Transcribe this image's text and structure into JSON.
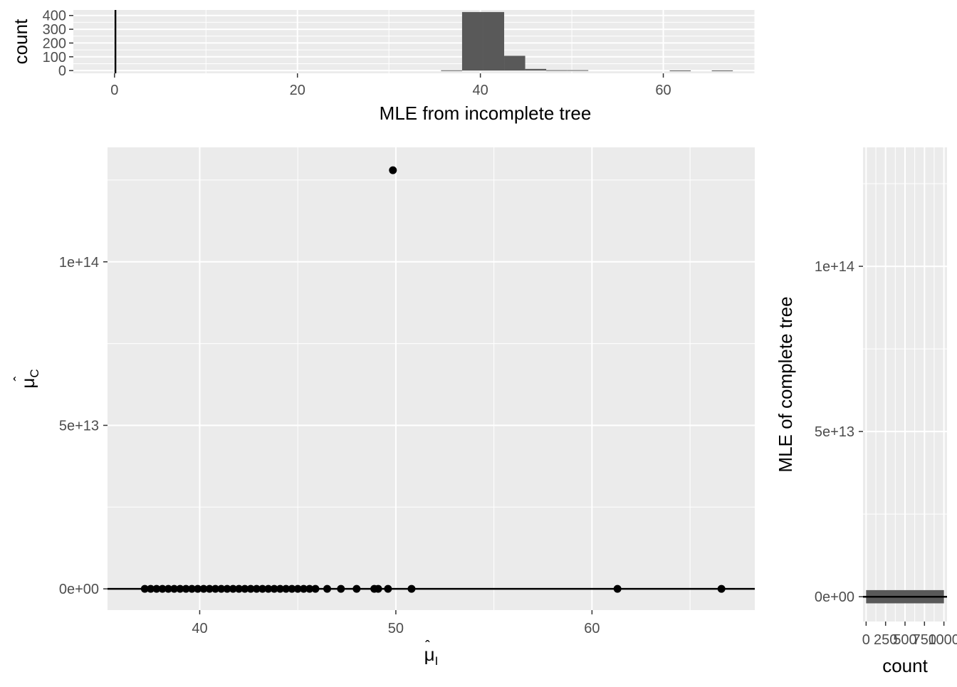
{
  "chart_data": [
    {
      "id": "top-histogram",
      "type": "bar",
      "xlabel": "MLE from incomplete tree",
      "ylabel": "count",
      "xlim": [
        -4.5,
        70
      ],
      "ylim": [
        -20,
        440
      ],
      "x_ticks": [
        0,
        20,
        40,
        60
      ],
      "y_ticks": [
        0,
        100,
        200,
        300,
        400
      ],
      "x_tick_labels": [
        "0",
        "20",
        "40",
        "60"
      ],
      "y_tick_labels": [
        "0",
        "100",
        "200",
        "300",
        "400"
      ],
      "bin_width": 2.3,
      "bins": [
        {
          "x0": 35.7,
          "x1": 38.0,
          "count": 2
        },
        {
          "x0": 38.0,
          "x1": 40.3,
          "count": 425
        },
        {
          "x0": 40.3,
          "x1": 42.6,
          "count": 425
        },
        {
          "x0": 42.6,
          "x1": 44.9,
          "count": 107
        },
        {
          "x0": 44.9,
          "x1": 47.2,
          "count": 12
        },
        {
          "x0": 47.2,
          "x1": 49.5,
          "count": 3
        },
        {
          "x0": 49.5,
          "x1": 51.8,
          "count": 3
        },
        {
          "x0": 60.7,
          "x1": 63.0,
          "count": 1
        },
        {
          "x0": 65.3,
          "x1": 67.6,
          "count": 1
        }
      ],
      "vline_x": 0.1,
      "grid": true,
      "bar_color": "#595959",
      "panel_color": "#ebebeb"
    },
    {
      "id": "main-scatter",
      "type": "scatter",
      "xlabel_main": "μ",
      "xlabel_sub": "I",
      "ylabel_main": "μ",
      "ylabel_sub": "C",
      "xlim": [
        35.3,
        68.3
      ],
      "ylim": [
        -6500000000000.0,
        135000000000000.0
      ],
      "x_ticks": [
        40,
        50,
        60
      ],
      "y_ticks": [
        0,
        50000000000000.0,
        100000000000000.0
      ],
      "x_tick_labels": [
        "40",
        "50",
        "60"
      ],
      "y_tick_labels": [
        "0e+00",
        "5e+13",
        "1e+14"
      ],
      "hline_y": 0,
      "points": [
        {
          "x": 49.85,
          "y": 128000000000000.0
        },
        {
          "x": 37.2,
          "y": 0
        },
        {
          "x": 37.5,
          "y": 0
        },
        {
          "x": 37.8,
          "y": 0
        },
        {
          "x": 38.1,
          "y": 0
        },
        {
          "x": 38.4,
          "y": 0
        },
        {
          "x": 38.7,
          "y": 0
        },
        {
          "x": 39.0,
          "y": 0
        },
        {
          "x": 39.3,
          "y": 0
        },
        {
          "x": 39.6,
          "y": 0
        },
        {
          "x": 39.9,
          "y": 0
        },
        {
          "x": 40.2,
          "y": 0
        },
        {
          "x": 40.5,
          "y": 0
        },
        {
          "x": 40.8,
          "y": 0
        },
        {
          "x": 41.1,
          "y": 0
        },
        {
          "x": 41.4,
          "y": 0
        },
        {
          "x": 41.7,
          "y": 0
        },
        {
          "x": 42.0,
          "y": 0
        },
        {
          "x": 42.3,
          "y": 0
        },
        {
          "x": 42.6,
          "y": 0
        },
        {
          "x": 42.9,
          "y": 0
        },
        {
          "x": 43.2,
          "y": 0
        },
        {
          "x": 43.5,
          "y": 0
        },
        {
          "x": 43.8,
          "y": 0
        },
        {
          "x": 44.1,
          "y": 0
        },
        {
          "x": 44.4,
          "y": 0
        },
        {
          "x": 44.7,
          "y": 0
        },
        {
          "x": 45.0,
          "y": 0
        },
        {
          "x": 45.3,
          "y": 0
        },
        {
          "x": 45.6,
          "y": 0
        },
        {
          "x": 45.9,
          "y": 0
        },
        {
          "x": 46.5,
          "y": 0
        },
        {
          "x": 47.2,
          "y": 0
        },
        {
          "x": 48.0,
          "y": 0
        },
        {
          "x": 48.9,
          "y": 0
        },
        {
          "x": 49.1,
          "y": 0
        },
        {
          "x": 49.6,
          "y": 0
        },
        {
          "x": 50.8,
          "y": 0
        },
        {
          "x": 61.3,
          "y": 0
        },
        {
          "x": 66.6,
          "y": 0
        }
      ],
      "grid": true,
      "point_color": "#000000",
      "panel_color": "#ebebeb"
    },
    {
      "id": "right-histogram",
      "type": "bar",
      "orientation": "horizontal",
      "xlabel": "count",
      "ylabel": "MLE of complete tree",
      "xlim": [
        -40,
        1040
      ],
      "ylim": [
        -7500000000000.0,
        136000000000000.0
      ],
      "x_ticks": [
        0,
        250,
        500,
        750,
        1000
      ],
      "x_tick_labels": [
        "0",
        "250",
        "500",
        "750",
        "1000"
      ],
      "y_ticks": [
        0,
        50000000000000.0,
        100000000000000.0
      ],
      "y_tick_labels": [
        "0e+00",
        "5e+13",
        "1e+14"
      ],
      "bars": [
        {
          "y0": -2000000000000.0,
          "y1": 2000000000000.0,
          "count": 1000
        }
      ],
      "hline_y": 0,
      "grid": true,
      "bar_color": "#595959",
      "panel_color": "#ebebeb"
    }
  ]
}
